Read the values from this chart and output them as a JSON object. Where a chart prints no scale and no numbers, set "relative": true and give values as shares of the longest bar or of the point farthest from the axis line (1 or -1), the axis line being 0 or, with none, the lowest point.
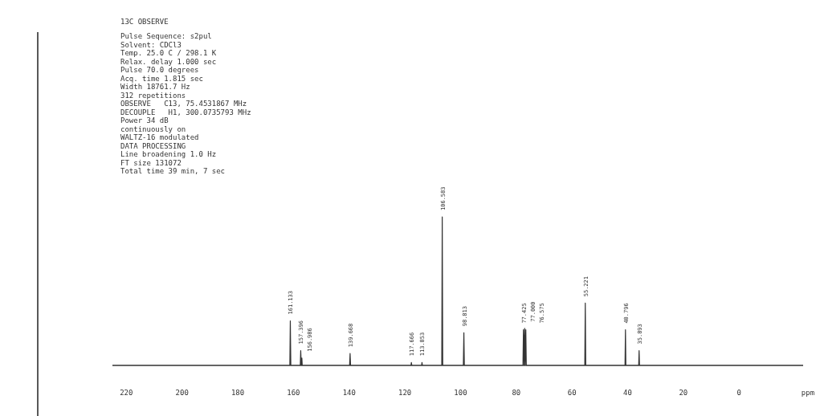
{
  "chart_data": {
    "type": "line",
    "title": "13C OBSERVE",
    "xlabel": "ppm",
    "relative": true,
    "grid": false,
    "marker": "none",
    "line_style": "solid",
    "xlim": [
      225,
      -23
    ],
    "xticks": [
      220,
      200,
      180,
      160,
      140,
      120,
      100,
      80,
      60,
      40,
      20,
      0
    ],
    "series": [
      {
        "color": "#333333",
        "x": [
          225,
          161.3,
          161.133,
          160.95,
          157.55,
          157.396,
          157.2,
          157.1,
          156.986,
          156.85,
          139.85,
          139.668,
          139.5,
          117.8,
          117.666,
          117.5,
          114.0,
          113.853,
          113.7,
          106.75,
          106.583,
          106.4,
          99.0,
          98.813,
          98.65,
          77.6,
          77.425,
          77.2,
          77.0,
          76.8,
          76.575,
          76.4,
          55.4,
          55.221,
          55.05,
          40.95,
          40.796,
          40.65,
          36.05,
          35.893,
          35.75,
          -23
        ],
        "values": [
          0,
          0,
          0.3,
          0,
          0,
          0.1,
          0,
          0,
          0.05,
          0,
          0,
          0.08,
          0,
          0,
          0.02,
          0,
          0,
          0.02,
          0,
          0,
          1,
          0,
          0,
          0.22,
          0,
          0,
          0.24,
          0,
          0.25,
          0,
          0.24,
          0,
          0,
          0.42,
          0,
          0,
          0.24,
          0,
          0,
          0.1,
          0,
          0
        ]
      }
    ],
    "annotations": [
      "Pulse Sequence: s2pul",
      "Solvent: CDCl3",
      "Temp. 25.0 C / 298.1 K",
      "Relax. delay 1.000 sec",
      "Pulse 70.0 degrees",
      "Acq. time 1.815 sec",
      "Width 18761.7 Hz",
      "312 repetitions",
      "OBSERVE   C13, 75.4531867 MHz",
      "DECOUPLE   H1, 300.0735793 MHz",
      "Power 34 dB",
      "continuously on",
      "WALTZ-16 modulated",
      "DATA PROCESSING",
      "Line broadening 1.0 Hz",
      "FT size 131072",
      "Total time 39 min, 7 sec",
      {
        "text": "161.133",
        "x": 161.133,
        "y": 0.3
      },
      {
        "text": "157.396",
        "x": 157.396,
        "y": 0.1
      },
      {
        "text": "156.986",
        "x": 156.986,
        "y": 0.05
      },
      {
        "text": "139.668",
        "x": 139.668,
        "y": 0.08
      },
      {
        "text": "117.666",
        "x": 117.666,
        "y": 0.02
      },
      {
        "text": "113.853",
        "x": 113.853,
        "y": 0.02
      },
      {
        "text": "106.583",
        "x": 106.583,
        "y": 1
      },
      {
        "text": "98.813",
        "x": 98.813,
        "y": 0.22
      },
      {
        "text": "77.425",
        "x": 77.425,
        "y": 0.24
      },
      {
        "text": "77.000",
        "x": 77.0,
        "y": 0.25
      },
      {
        "text": "76.575",
        "x": 76.575,
        "y": 0.24
      },
      {
        "text": "55.221",
        "x": 55.221,
        "y": 0.42
      },
      {
        "text": "40.796",
        "x": 40.796,
        "y": 0.24
      },
      {
        "text": "35.893",
        "x": 35.893,
        "y": 0.1
      }
    ]
  }
}
